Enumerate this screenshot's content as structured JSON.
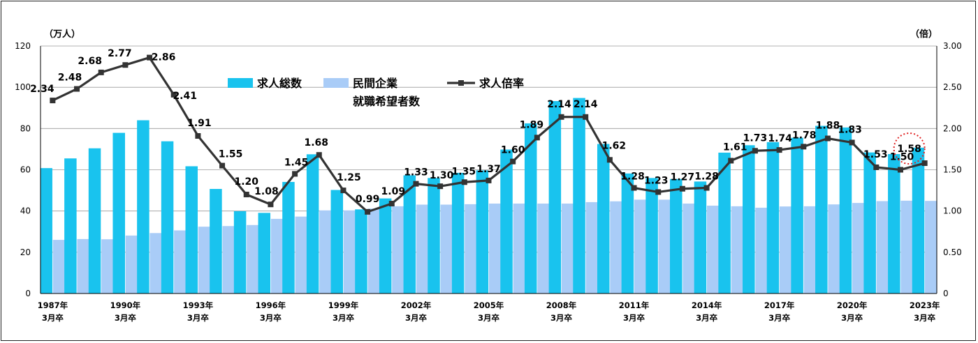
{
  "chart_data": {
    "type": "bar",
    "categories": [
      "1987年\n3月卒",
      "1988年\n3月卒",
      "1989年\n3月卒",
      "1990年\n3月卒",
      "1991年\n3月卒",
      "1992年\n3月卒",
      "1993年\n3月卒",
      "1994年\n3月卒",
      "1995年\n3月卒",
      "1996年\n3月卒",
      "1997年\n3月卒",
      "1998年\n3月卒",
      "1999年\n3月卒",
      "2000年\n3月卒",
      "2001年\n3月卒",
      "2002年\n3月卒",
      "2003年\n3月卒",
      "2004年\n3月卒",
      "2005年\n3月卒",
      "2006年\n3月卒",
      "2007年\n3月卒",
      "2008年\n3月卒",
      "2009年\n3月卒",
      "2010年\n3月卒",
      "2011年\n3月卒",
      "2012年\n3月卒",
      "2013年\n3月卒",
      "2014年\n3月卒",
      "2015年\n3月卒",
      "2016年\n3月卒",
      "2017年\n3月卒",
      "2018年\n3月卒",
      "2019年\n3月卒",
      "2020年\n3月卒",
      "2021年\n3月卒",
      "2022年\n3月卒",
      "2023年\n3月卒"
    ],
    "shown_tick_indices": [
      0,
      3,
      6,
      9,
      12,
      15,
      18,
      21,
      24,
      27,
      30,
      33,
      36
    ],
    "series": [
      {
        "name": "求人総数",
        "color": "#19c3ee",
        "axis": "left",
        "values": [
          60.8,
          65.5,
          70.4,
          77.9,
          84.0,
          73.8,
          61.7,
          50.7,
          39.9,
          39.1,
          54.1,
          67.5,
          50.2,
          40.8,
          46.1,
          57.3,
          56.0,
          58.5,
          59.7,
          69.8,
          82.5,
          93.3,
          94.8,
          72.5,
          58.2,
          56.0,
          55.5,
          54.3,
          68.3,
          71.9,
          73.4,
          75.5,
          81.3,
          80.5,
          68.4,
          67.6,
          70.7
        ]
      },
      {
        "name": "民間企業\n就職希望者数",
        "color": "#a9ccf7",
        "axis": "left",
        "values": [
          26.0,
          26.4,
          26.3,
          28.1,
          29.3,
          30.6,
          32.4,
          32.7,
          33.2,
          36.2,
          37.3,
          40.3,
          40.3,
          41.2,
          42.3,
          43.1,
          43.1,
          43.3,
          43.6,
          43.6,
          43.6,
          43.6,
          44.3,
          44.7,
          45.5,
          45.5,
          43.6,
          42.6,
          42.3,
          41.6,
          42.2,
          42.3,
          43.2,
          43.9,
          44.8,
          45.0,
          44.9
        ]
      },
      {
        "name": "求人倍率",
        "color": "#333333",
        "axis": "right",
        "type": "line",
        "values": [
          2.34,
          2.48,
          2.68,
          2.77,
          2.86,
          2.41,
          1.91,
          1.55,
          1.2,
          1.08,
          1.45,
          1.68,
          1.25,
          0.99,
          1.09,
          1.33,
          1.3,
          1.35,
          1.37,
          1.6,
          1.89,
          2.14,
          2.14,
          1.62,
          1.28,
          1.23,
          1.27,
          1.28,
          1.61,
          1.73,
          1.74,
          1.78,
          1.88,
          1.83,
          1.53,
          1.5,
          1.58
        ]
      }
    ],
    "data_labels": [
      "2.34",
      "2.48",
      "2.68",
      "2.77",
      "2.86",
      "2.41",
      "1.91",
      "1.55",
      "1.20",
      "1.08",
      "1.45",
      "1.68",
      "1.25",
      "0.99",
      "1.09",
      "1.33",
      "1.30",
      "1.35",
      "1.37",
      "1.60",
      "1.89",
      "2.14",
      "2.14",
      "1.62",
      "1.28",
      "1.23",
      "1.27",
      "1.28",
      "1.61",
      "1.73",
      "1.74",
      "1.78",
      "1.88",
      "1.83",
      "1.53",
      "1.50",
      "1.58"
    ],
    "highlight_index": 36,
    "highlight_color": "#e02020",
    "y_left": {
      "label": "（万人）",
      "ylim": [
        0,
        120
      ],
      "ticks": [
        "0",
        "20",
        "40",
        "60",
        "80",
        "100",
        "120"
      ]
    },
    "y_right": {
      "label": "（倍）",
      "ylim": [
        0,
        3.0
      ],
      "ticks": [
        "0",
        "0.50",
        "1.00",
        "1.50",
        "2.00",
        "2.50",
        "3.00"
      ]
    },
    "grid": true,
    "legend_position": "top-center"
  }
}
